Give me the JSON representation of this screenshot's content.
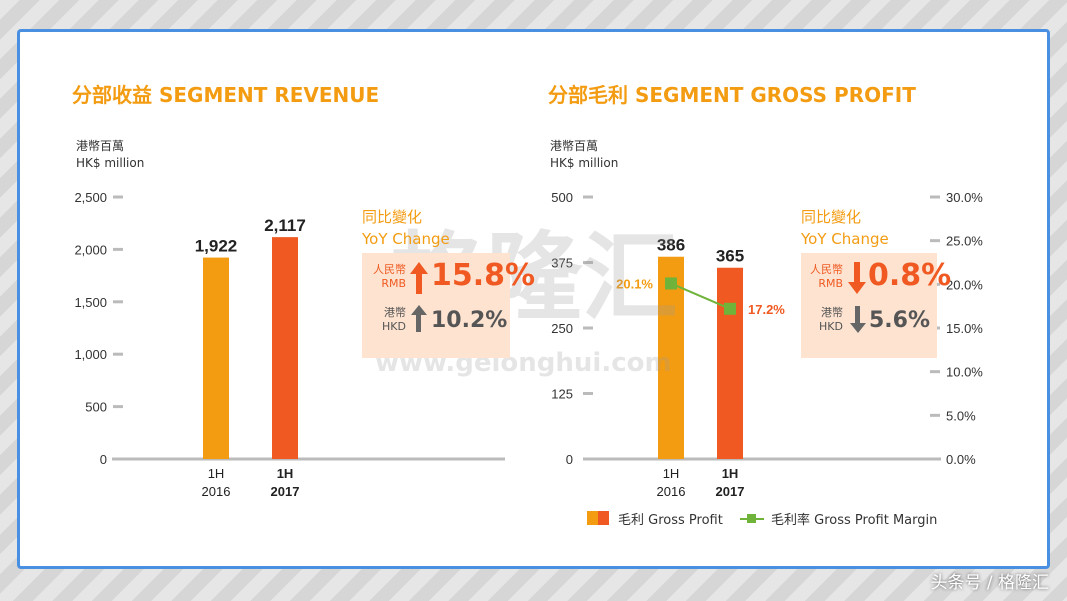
{
  "colors": {
    "orange": "#f39c12",
    "red": "#f05a22",
    "green": "#6fb33a",
    "box": "#fde3d0"
  },
  "revenue": {
    "title": "分部收益 SEGMENT REVENUE",
    "unit_cn": "港幣百萬",
    "unit_en": "HK$ million",
    "yoy": {
      "title_cn": "同比變化",
      "title_en": "YoY Change",
      "rmb_cn": "人民幣",
      "rmb_en": "RMB",
      "rmb_value": "15.8%",
      "rmb_dir": "up",
      "hkd_cn": "港幣",
      "hkd_en": "HKD",
      "hkd_value": "10.2%",
      "hkd_dir": "up"
    }
  },
  "gross": {
    "title": "分部毛利 SEGMENT GROSS PROFIT",
    "unit_cn": "港幣百萬",
    "unit_en": "HK$ million",
    "yoy": {
      "title_cn": "同比變化",
      "title_en": "YoY Change",
      "rmb_cn": "人民幣",
      "rmb_en": "RMB",
      "rmb_value": "0.8%",
      "rmb_dir": "down",
      "hkd_cn": "港幣",
      "hkd_en": "HKD",
      "hkd_value": "5.6%",
      "hkd_dir": "down"
    },
    "legend": {
      "bar": "毛利 Gross Profit",
      "line": "毛利率 Gross Profit Margin"
    }
  },
  "chart_data": [
    {
      "type": "bar",
      "title": "分部收益 SEGMENT REVENUE",
      "ylabel": "港幣百萬 HK$ million",
      "categories": [
        [
          "1H",
          "2016"
        ],
        [
          "1H",
          "2017"
        ]
      ],
      "values": [
        1922,
        2117
      ],
      "value_labels": [
        "1,922",
        "2,117"
      ],
      "yticks": [
        "0",
        "500",
        "1,000",
        "1,500",
        "2,000",
        "2,500"
      ],
      "ylim": [
        0,
        2500
      ],
      "grid": false,
      "legend": null
    },
    {
      "type": "bar",
      "title": "分部毛利 SEGMENT GROSS PROFIT",
      "ylabel": "港幣百萬 HK$ million",
      "categories": [
        [
          "1H",
          "2016"
        ],
        [
          "1H",
          "2017"
        ]
      ],
      "series": [
        {
          "name": "毛利 Gross Profit",
          "type": "bar",
          "values": [
            386,
            365
          ],
          "value_labels": [
            "386",
            "365"
          ]
        },
        {
          "name": "毛利率 Gross Profit Margin",
          "type": "line",
          "values": [
            20.1,
            17.2
          ],
          "value_labels": [
            "20.1%",
            "17.2%"
          ]
        }
      ],
      "yticks": [
        "0",
        "125",
        "250",
        "375",
        "500"
      ],
      "ylim": [
        0,
        500
      ],
      "y2ticks": [
        "0.0%",
        "5.0%",
        "10.0%",
        "15.0%",
        "20.0%",
        "25.0%",
        "30.0%"
      ],
      "y2lim": [
        0,
        30
      ],
      "grid": false,
      "legend": "bottom"
    }
  ],
  "watermark": {
    "cn": "格隆汇",
    "url": "www.gelonghui.com"
  },
  "footer": "头条号 / 格隆汇"
}
